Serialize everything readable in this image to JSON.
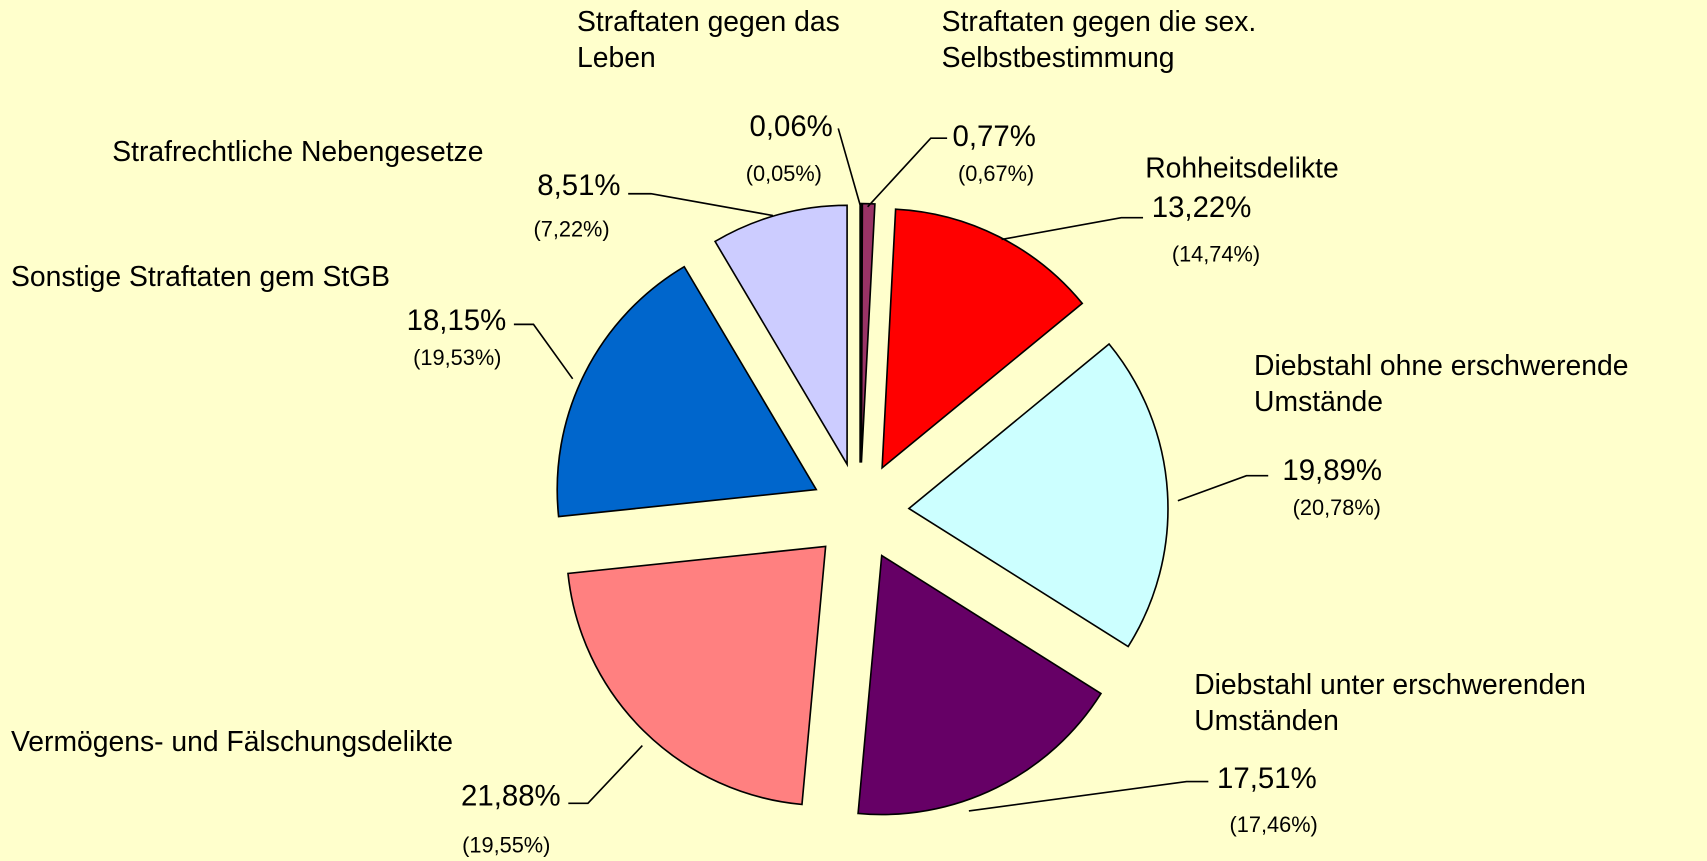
{
  "chart_data": {
    "type": "pie",
    "categories": [
      "Straftaten gegen das Leben",
      "Straftaten gegen die sex. Selbstbestimmung",
      "Rohheitsdelikte",
      "Diebstahl ohne erschwerende Umstände",
      "Diebstahl unter erschwerenden Umständen",
      "Vermögens- und Fälschungsdelikte",
      "Sonstige Straftaten gem StGB",
      "Strafrechtliche Nebengesetze"
    ],
    "values": [
      0.06,
      0.77,
      13.22,
      19.89,
      17.51,
      21.88,
      18.15,
      8.51
    ],
    "value_labels": [
      "0,06%",
      "0,77%",
      "13,22%",
      "19,89%",
      "17,51%",
      "21,88%",
      "18,15%",
      "8,51%"
    ],
    "previous_values": [
      0.05,
      0.67,
      14.74,
      20.78,
      17.46,
      19.55,
      19.53,
      7.22
    ],
    "previous_value_labels": [
      "(0,05%)",
      "(0,67%)",
      "(14,74%)",
      "(20,78%)",
      "(17,46%)",
      "(19,55%)",
      "(19,53%)",
      "(7,22%)"
    ],
    "colors": [
      "#660066",
      "#993366",
      "#ff0000",
      "#ccffff",
      "#660066",
      "#ff8080",
      "#0066cc",
      "#ccccff"
    ]
  }
}
